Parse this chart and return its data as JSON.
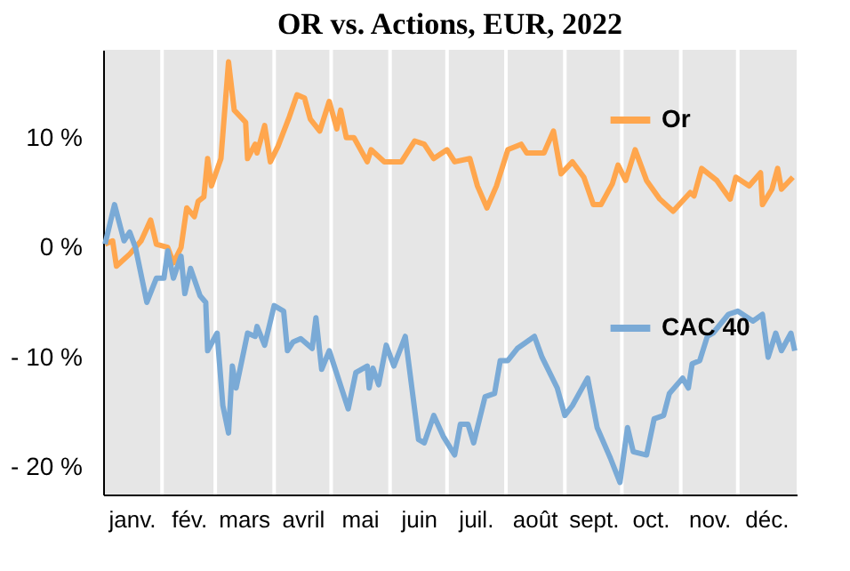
{
  "chart_data": {
    "type": "line",
    "title": "OR vs. Actions, EUR, 2022",
    "xlim": [
      "2022-01-01",
      "2023-01-01"
    ],
    "xticks": [
      {
        "value": "2022-01-16",
        "label": "janv."
      },
      {
        "value": "2022-02-01",
        "label": null
      },
      {
        "value": "2022-02-15",
        "label": "fév."
      },
      {
        "value": "2022-03-01",
        "label": null
      },
      {
        "value": "2022-03-16",
        "label": "mars"
      },
      {
        "value": "2022-04-01",
        "label": null
      },
      {
        "value": "2022-04-16",
        "label": "avril"
      },
      {
        "value": "2022-05-01",
        "label": null
      },
      {
        "value": "2022-05-16",
        "label": "mai"
      },
      {
        "value": "2022-06-01",
        "label": null
      },
      {
        "value": "2022-06-16",
        "label": "juin"
      },
      {
        "value": "2022-07-01",
        "label": null
      },
      {
        "value": "2022-07-16",
        "label": "juil."
      },
      {
        "value": "2022-08-01",
        "label": null
      },
      {
        "value": "2022-08-16",
        "label": "août"
      },
      {
        "value": "2022-09-01",
        "label": null
      },
      {
        "value": "2022-09-16",
        "label": "sept."
      },
      {
        "value": "2022-10-01",
        "label": null
      },
      {
        "value": "2022-10-16",
        "label": "oct."
      },
      {
        "value": "2022-11-01",
        "label": null
      },
      {
        "value": "2022-11-16",
        "label": "nov."
      },
      {
        "value": "2022-12-01",
        "label": null
      },
      {
        "value": "2022-12-16",
        "label": "déc."
      }
    ],
    "ylim": [
      -22.5,
      18
    ],
    "yticks": [
      {
        "value": -20,
        "label": "- 20 %"
      },
      {
        "value": -10,
        "label": "- 10 %"
      },
      {
        "value": 0,
        "label": "0 %"
      },
      {
        "value": 10,
        "label": "10 %"
      }
    ],
    "grid": "x",
    "legend": "top right",
    "marker": "none",
    "line_style": "solid",
    "series": [
      {
        "name": "Or",
        "color": "#ffa64d",
        "x": [
          "2022-01-02",
          "2022-01-06",
          "2022-01-08",
          "2022-01-15",
          "2022-01-21",
          "2022-01-26",
          "2022-01-29",
          "2022-02-04",
          "2022-02-07",
          "2022-02-11",
          "2022-02-14",
          "2022-02-18",
          "2022-02-20",
          "2022-02-23",
          "2022-02-25",
          "2022-02-27",
          "2022-03-04",
          "2022-03-08",
          "2022-03-11",
          "2022-03-17",
          "2022-03-18",
          "2022-03-22",
          "2022-03-23",
          "2022-03-27",
          "2022-03-30",
          "2022-04-03",
          "2022-04-09",
          "2022-04-13",
          "2022-04-17",
          "2022-04-20",
          "2022-04-25",
          "2022-04-30",
          "2022-05-04",
          "2022-05-06",
          "2022-05-09",
          "2022-05-13",
          "2022-05-20",
          "2022-05-22",
          "2022-05-29",
          "2022-06-07",
          "2022-06-14",
          "2022-06-19",
          "2022-06-24",
          "2022-07-01",
          "2022-07-05",
          "2022-07-13",
          "2022-07-17",
          "2022-07-22",
          "2022-07-27",
          "2022-08-02",
          "2022-08-09",
          "2022-08-12",
          "2022-08-21",
          "2022-08-26",
          "2022-08-30",
          "2022-09-05",
          "2022-09-11",
          "2022-09-16",
          "2022-09-20",
          "2022-09-26",
          "2022-09-29",
          "2022-10-03",
          "2022-10-08",
          "2022-10-14",
          "2022-10-21",
          "2022-10-28",
          "2022-11-06",
          "2022-11-08",
          "2022-11-12",
          "2022-11-20",
          "2022-11-27",
          "2022-11-30",
          "2022-12-07",
          "2022-12-13",
          "2022-12-14",
          "2022-12-19",
          "2022-12-22",
          "2022-12-24",
          "2022-12-30"
        ],
        "values": [
          0.3,
          0.6,
          -1.7,
          -0.6,
          0.6,
          2.5,
          0.3,
          0,
          -1.4,
          0,
          3.6,
          2.8,
          4.2,
          4.6,
          8.1,
          5.6,
          8.1,
          16.9,
          12.5,
          11.4,
          8.1,
          9.4,
          8.6,
          11.1,
          7.8,
          9.2,
          11.9,
          13.9,
          13.6,
          11.7,
          10.6,
          13.3,
          10.8,
          12.5,
          10,
          10,
          7.8,
          8.9,
          7.8,
          7.8,
          9.7,
          9.4,
          8.1,
          8.9,
          7.8,
          8.1,
          5.6,
          3.6,
          5.6,
          8.9,
          9.4,
          8.6,
          8.6,
          10.6,
          6.7,
          7.8,
          6.4,
          3.9,
          3.9,
          5.8,
          7.5,
          6.1,
          8.9,
          6.1,
          4.4,
          3.3,
          5,
          4.7,
          7.2,
          6.1,
          4.4,
          6.4,
          5.6,
          6.8,
          3.9,
          5.3,
          7.2,
          5.3,
          6.4
        ]
      },
      {
        "name": "CAC 40",
        "color": "#7aaad6",
        "x": [
          "2022-01-02",
          "2022-01-07",
          "2022-01-12",
          "2022-01-15",
          "2022-01-18",
          "2022-01-24",
          "2022-01-29",
          "2022-02-02",
          "2022-02-04",
          "2022-02-07",
          "2022-02-11",
          "2022-02-13",
          "2022-02-16",
          "2022-02-21",
          "2022-02-24",
          "2022-02-25",
          "2022-03-02",
          "2022-03-05",
          "2022-03-08",
          "2022-03-10",
          "2022-03-12",
          "2022-03-18",
          "2022-03-22",
          "2022-03-23",
          "2022-03-27",
          "2022-04-01",
          "2022-04-06",
          "2022-04-08",
          "2022-04-11",
          "2022-04-15",
          "2022-04-21",
          "2022-04-23",
          "2022-04-26",
          "2022-04-30",
          "2022-05-10",
          "2022-05-14",
          "2022-05-20",
          "2022-05-21",
          "2022-05-23",
          "2022-05-26",
          "2022-05-30",
          "2022-06-03",
          "2022-06-09",
          "2022-06-16",
          "2022-06-19",
          "2022-06-24",
          "2022-06-29",
          "2022-07-05",
          "2022-07-08",
          "2022-07-12",
          "2022-07-15",
          "2022-07-21",
          "2022-07-26",
          "2022-07-29",
          "2022-08-02",
          "2022-08-07",
          "2022-08-16",
          "2022-08-20",
          "2022-08-28",
          "2022-09-01",
          "2022-09-05",
          "2022-09-13",
          "2022-09-18",
          "2022-09-25",
          "2022-09-30",
          "2022-10-04",
          "2022-10-07",
          "2022-10-14",
          "2022-10-18",
          "2022-10-23",
          "2022-10-26",
          "2022-11-02",
          "2022-11-05",
          "2022-11-07",
          "2022-11-11",
          "2022-11-15",
          "2022-11-18",
          "2022-11-26",
          "2022-12-01",
          "2022-12-09",
          "2022-12-14",
          "2022-12-17",
          "2022-12-21",
          "2022-12-24",
          "2022-12-29",
          "2022-12-31"
        ],
        "values": [
          0.3,
          3.9,
          0.6,
          1.4,
          0,
          -5,
          -2.8,
          -2.8,
          -0.3,
          -2.8,
          -0.8,
          -4.2,
          -1.9,
          -4.4,
          -5,
          -9.4,
          -7.8,
          -14.4,
          -16.9,
          -10.8,
          -12.8,
          -7.8,
          -8.1,
          -7.2,
          -8.9,
          -5.3,
          -5.8,
          -9.4,
          -8.6,
          -8.3,
          -9.2,
          -6.4,
          -11.1,
          -9.4,
          -14.7,
          -11.4,
          -10.8,
          -12.8,
          -11,
          -12.5,
          -8.9,
          -10.8,
          -8.1,
          -17.5,
          -17.8,
          -15.3,
          -17.2,
          -18.9,
          -16.1,
          -16.1,
          -17.8,
          -13.6,
          -13.3,
          -10.3,
          -10.3,
          -9.2,
          -8.1,
          -10,
          -12.8,
          -15.3,
          -14.4,
          -11.9,
          -16.4,
          -19.2,
          -21.4,
          -16.4,
          -18.6,
          -18.9,
          -15.6,
          -15.3,
          -13.3,
          -11.9,
          -12.8,
          -10.6,
          -10.3,
          -8.1,
          -7.8,
          -6.1,
          -5.8,
          -6.7,
          -6.1,
          -10,
          -7.8,
          -9.4,
          -7.8,
          -9.4
        ]
      }
    ]
  }
}
